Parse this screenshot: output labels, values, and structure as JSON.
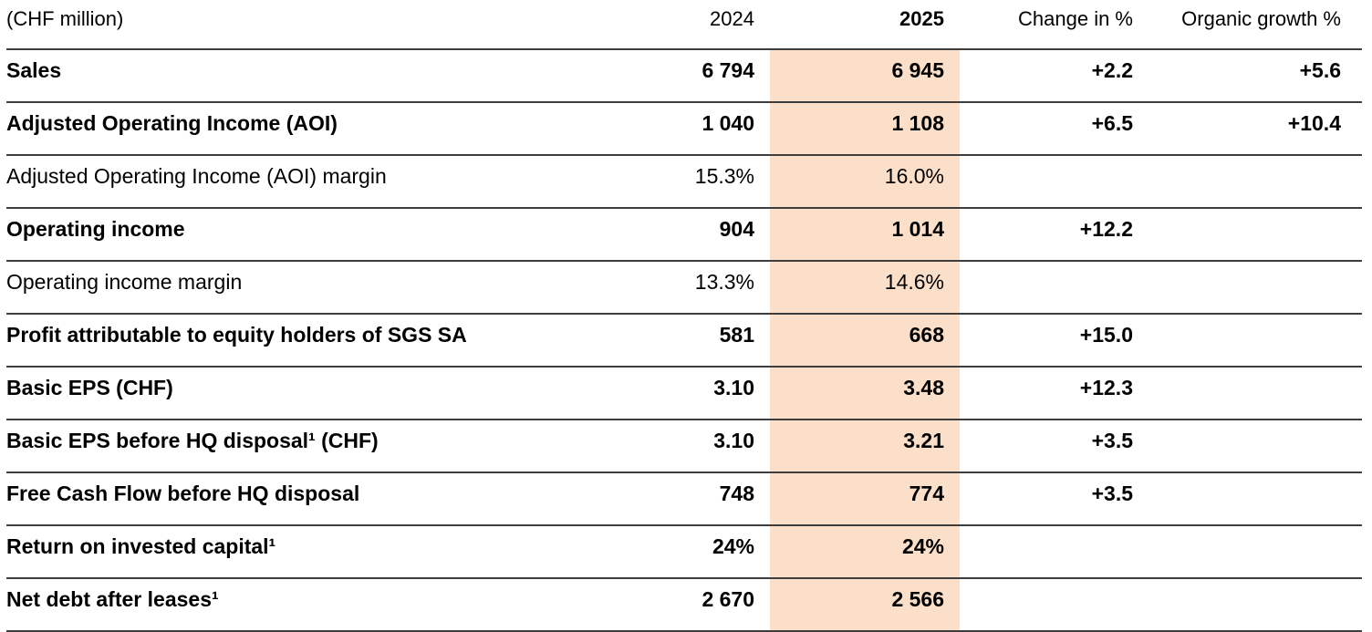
{
  "accent": {
    "highlight_color": "#FCDFC8",
    "rule_color": "#3E3E3E",
    "text_color": "#000000"
  },
  "table": {
    "unit_label": "(CHF million)",
    "columns": [
      "2024",
      "2025",
      "Change in %",
      "Organic growth %"
    ],
    "highlighted_column": "2025",
    "rows": [
      {
        "label": "Sales",
        "bold": true,
        "y2024": "6 794",
        "y2025": "6 945",
        "change": "+2.2",
        "organic": "+5.6"
      },
      {
        "label": "Adjusted Operating Income (AOI)",
        "bold": true,
        "y2024": "1 040",
        "y2025": "1 108",
        "change": "+6.5",
        "organic": "+10.4"
      },
      {
        "label": "Adjusted Operating Income (AOI) margin",
        "bold": false,
        "y2024": "15.3%",
        "y2025": "16.0%",
        "change": "",
        "organic": ""
      },
      {
        "label": "Operating income",
        "bold": true,
        "y2024": "904",
        "y2025": "1 014",
        "change": "+12.2",
        "organic": ""
      },
      {
        "label": "Operating income margin",
        "bold": false,
        "y2024": "13.3%",
        "y2025": "14.6%",
        "change": "",
        "organic": ""
      },
      {
        "label": "Profit attributable to equity holders of SGS SA",
        "bold": true,
        "y2024": "581",
        "y2025": "668",
        "change": "+15.0",
        "organic": ""
      },
      {
        "label": "Basic EPS (CHF)",
        "bold": true,
        "y2024": "3.10",
        "y2025": "3.48",
        "change": "+12.3",
        "organic": ""
      },
      {
        "label": "Basic EPS before HQ disposal¹ (CHF)",
        "bold": true,
        "y2024": "3.10",
        "y2025": "3.21",
        "change": "+3.5",
        "organic": ""
      },
      {
        "label": "Free Cash Flow before HQ disposal",
        "bold": true,
        "y2024": "748",
        "y2025": "774",
        "change": "+3.5",
        "organic": ""
      },
      {
        "label": "Return on invested capital¹",
        "bold": true,
        "y2024": "24%",
        "y2025": "24%",
        "change": "",
        "organic": ""
      },
      {
        "label": "Net debt after leases¹",
        "bold": true,
        "y2024": "2 670",
        "y2025": "2 566",
        "change": "",
        "organic": ""
      }
    ]
  }
}
